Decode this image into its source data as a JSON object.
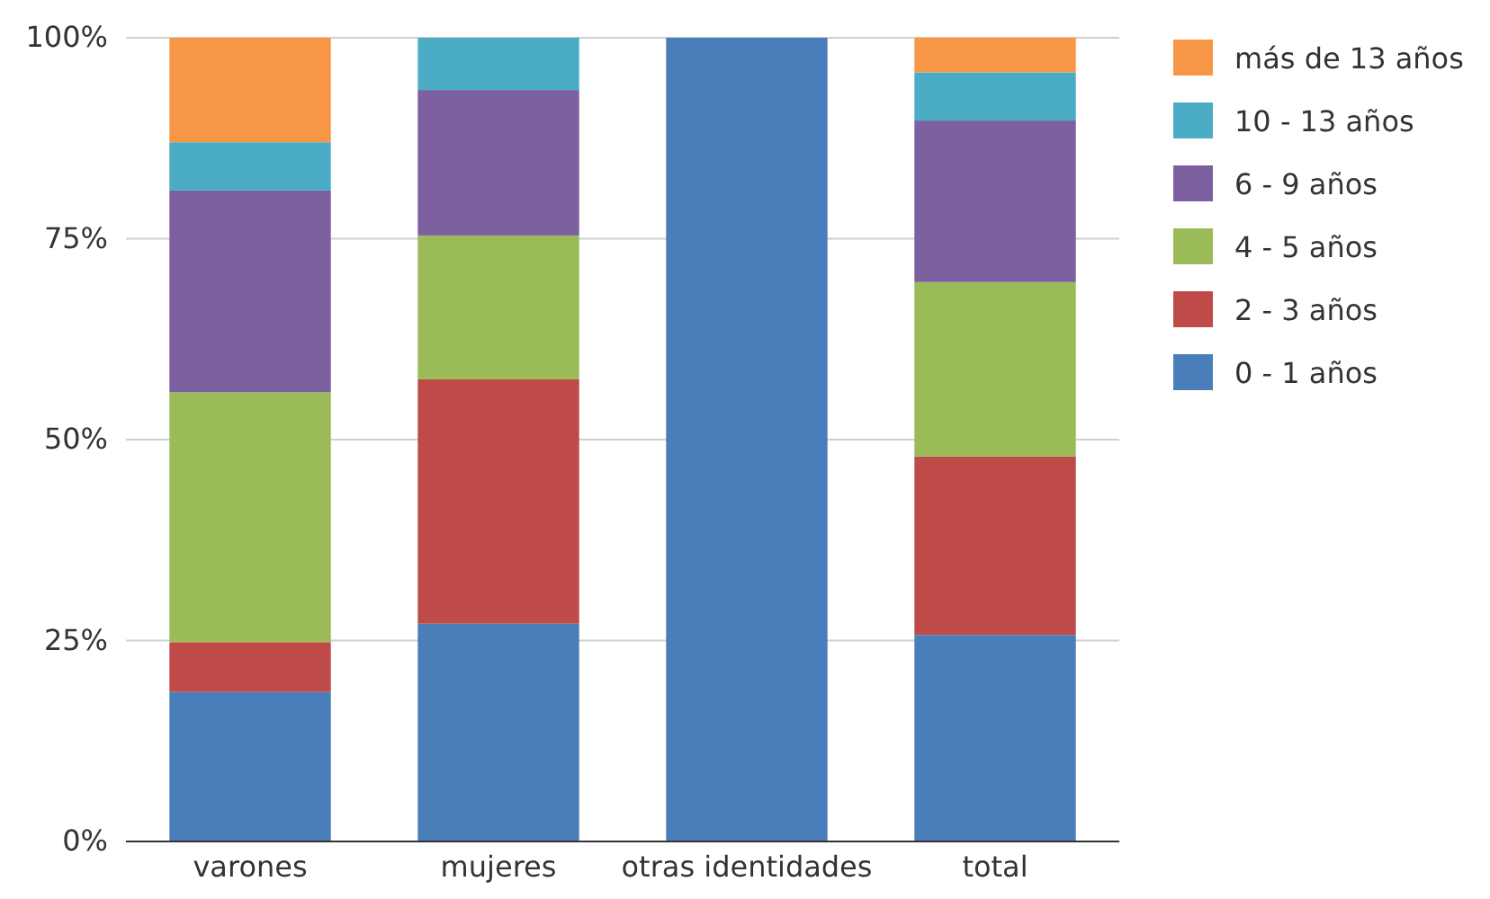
{
  "chart_data": {
    "type": "bar",
    "stacked": true,
    "categories": [
      "varones",
      "mujeres",
      "otras identidades",
      "total"
    ],
    "series": [
      {
        "name": "0 - 1 años",
        "color": "#4a7ebb",
        "values": [
          18.6,
          27.1,
          100,
          25.7
        ]
      },
      {
        "name": "2 - 3 años",
        "color": "#be4b48",
        "values": [
          6.2,
          30.4,
          0,
          22.2
        ]
      },
      {
        "name": "4 - 5 años",
        "color": "#9bbb59",
        "values": [
          31.1,
          17.9,
          0,
          21.7
        ]
      },
      {
        "name": "6 - 9 años",
        "color": "#7d60a0",
        "values": [
          25.1,
          18.1,
          0,
          20.1
        ]
      },
      {
        "name": "10 - 13 años",
        "color": "#4bacc6",
        "values": [
          6.0,
          6.5,
          0,
          6.0
        ]
      },
      {
        "name": "más de 13 años",
        "color": "#f79646",
        "values": [
          13.0,
          0,
          0,
          4.3
        ]
      }
    ],
    "ylim": [
      0,
      100
    ],
    "yticks": [
      {
        "value": 0,
        "label": "0%"
      },
      {
        "value": 25,
        "label": "25%"
      },
      {
        "value": 50,
        "label": "50%"
      },
      {
        "value": 75,
        "label": "75%"
      },
      {
        "value": 100,
        "label": "100%"
      }
    ],
    "grid": "y",
    "legend": "top right"
  }
}
